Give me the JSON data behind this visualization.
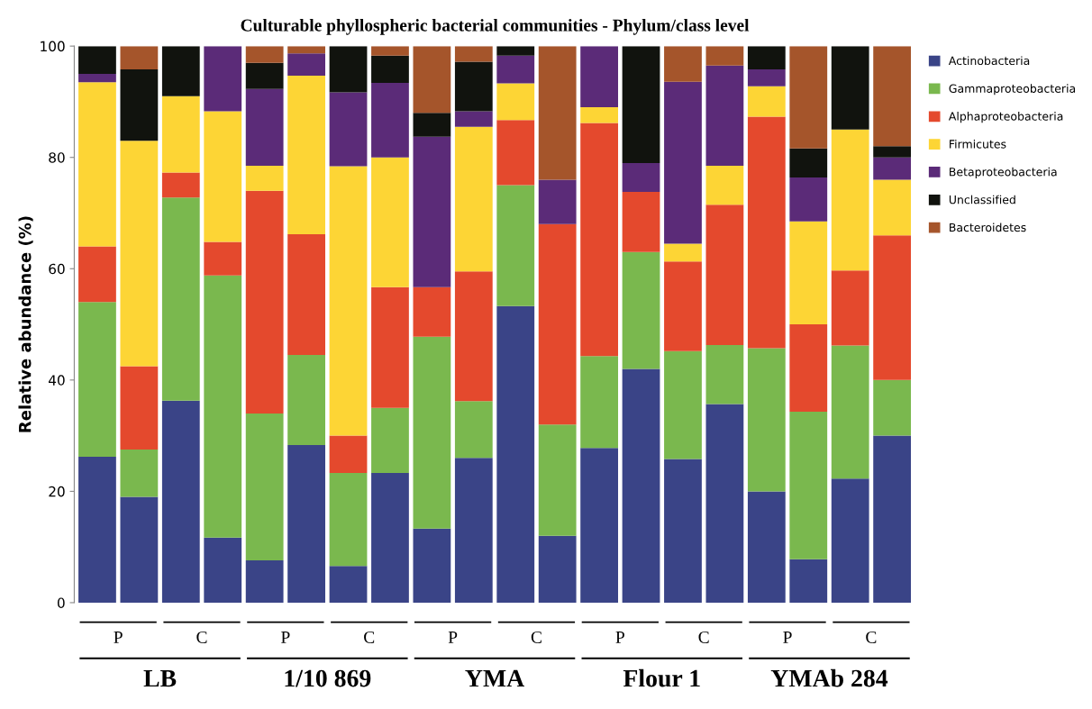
{
  "chart_data": {
    "type": "bar",
    "stacked": true,
    "title": "Culturable phyllospheric bacterial communities - Phylum/class level",
    "ylabel": "Relative abundance (%)",
    "categories": [
      null,
      null,
      null,
      null,
      null,
      null,
      null,
      null,
      null,
      null,
      null,
      null,
      null,
      null,
      null,
      null,
      null,
      null,
      null,
      null
    ],
    "series": [
      {
        "name": "Actinobacteria",
        "color": "#3a4487",
        "values": [
          26.2,
          19,
          36.3,
          11.7,
          7.6,
          28.3,
          6.6,
          23.3,
          13.3,
          26,
          53.3,
          12,
          27.8,
          42,
          25.8,
          35.7,
          20,
          7.8,
          22.3,
          30
        ]
      },
      {
        "name": "Gammaproteobacteria",
        "color": "#7ab84e",
        "values": [
          27.8,
          8.5,
          36.5,
          47.1,
          26.4,
          16.2,
          16.7,
          11.7,
          34.5,
          10.2,
          21.7,
          20,
          16.5,
          21,
          19.4,
          10.6,
          25.7,
          26.5,
          23.9,
          10
        ]
      },
      {
        "name": "Alphaproteobacteria",
        "color": "#e4492d",
        "values": [
          10,
          15,
          4.5,
          6,
          40,
          21.7,
          6.7,
          21.7,
          8.9,
          23.3,
          11.7,
          36,
          41.9,
          10.8,
          16.1,
          25.2,
          41.6,
          15.7,
          13.5,
          26
        ]
      },
      {
        "name": "Firmicutes",
        "color": "#fdd535",
        "values": [
          29.5,
          40.5,
          13.7,
          23.5,
          4.5,
          28.5,
          48.4,
          23.3,
          0,
          26,
          6.6,
          0,
          2.8,
          0,
          3.2,
          7,
          5.5,
          18.5,
          25.3,
          10
        ]
      },
      {
        "name": "Betaproteobacteria",
        "color": "#5b2b78",
        "values": [
          1.5,
          0,
          0,
          11.7,
          13.8,
          4,
          13.3,
          13.4,
          27,
          2.8,
          5,
          8,
          11,
          5.2,
          29.1,
          18,
          3,
          7.9,
          0,
          4
        ]
      },
      {
        "name": "Unclassified",
        "color": "#11130e",
        "values": [
          5,
          12.8,
          9,
          0,
          4.7,
          0,
          8.3,
          4.9,
          4.3,
          8.9,
          1.7,
          0,
          0,
          21,
          0,
          0,
          4.2,
          5.2,
          15,
          2
        ]
      },
      {
        "name": "Bacteroidetes",
        "color": "#a5552b",
        "values": [
          0,
          4.2,
          0,
          0,
          3,
          1.3,
          0,
          1.7,
          12,
          2.8,
          0,
          24,
          0,
          0,
          6.4,
          3.5,
          0,
          18.4,
          0,
          18
        ]
      }
    ],
    "ylim": [
      0,
      100
    ],
    "yticks": [
      0,
      20,
      40,
      60,
      80,
      100
    ],
    "legend": "right",
    "annotations": [
      "P",
      "C",
      "P",
      "C",
      "P",
      "C",
      "P",
      "C",
      "P",
      "C",
      "LB",
      "1/10 869",
      "YMA",
      "Flour 1",
      "YMAb 284"
    ]
  }
}
